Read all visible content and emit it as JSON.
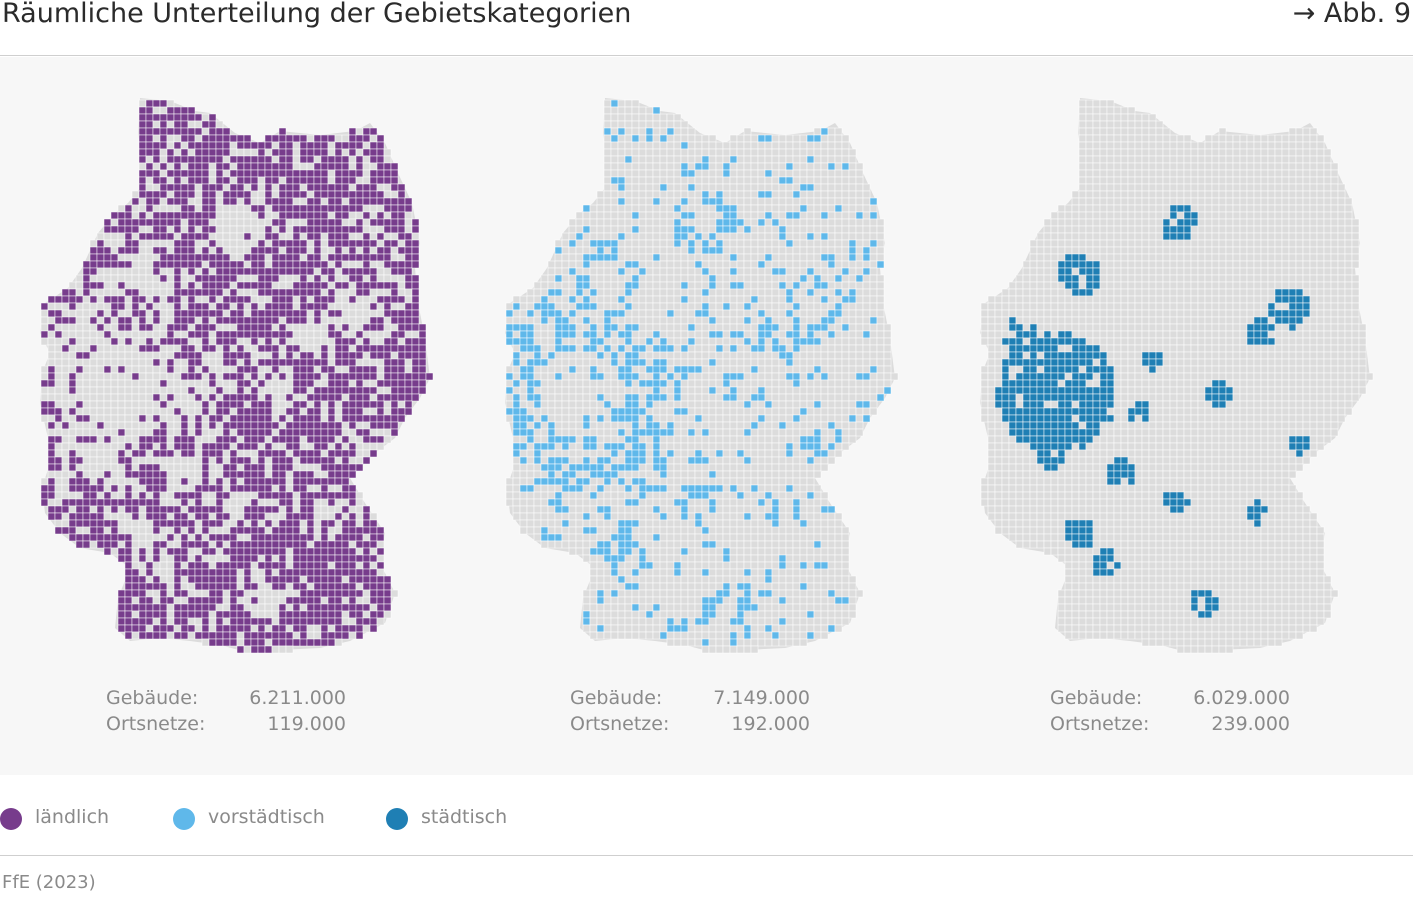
{
  "header": {
    "title": "Räumliche Unterteilung der Gebietskategorien",
    "figure_ref": "→ Abb. 9"
  },
  "maps": [
    {
      "category": "ländlich",
      "color": "#773c8c",
      "stats": [
        {
          "label": "Gebäude:",
          "value": "6.211.000"
        },
        {
          "label": "Ortsnetze:",
          "value": "119.000"
        }
      ]
    },
    {
      "category": "vorstädtisch",
      "color": "#5fb8ea",
      "stats": [
        {
          "label": "Gebäude:",
          "value": "7.149.000"
        },
        {
          "label": "Ortsnetze:",
          "value": "192.000"
        }
      ]
    },
    {
      "category": "städtisch",
      "color": "#1f7fb4",
      "stats": [
        {
          "label": "Gebäude:",
          "value": "6.029.000"
        },
        {
          "label": "Ortsnetze:",
          "value": "239.000"
        }
      ]
    }
  ],
  "legend": [
    {
      "label": "ländlich",
      "color": "#773c8c"
    },
    {
      "label": "vorstädtisch",
      "color": "#5fb8ea"
    },
    {
      "label": "städtisch",
      "color": "#1f7fb4"
    }
  ],
  "colors": {
    "base_region": "#dcdcdc",
    "region_border": "#ffffff",
    "panel_background": "#f7f7f7"
  },
  "source": "FfE (2023)"
}
